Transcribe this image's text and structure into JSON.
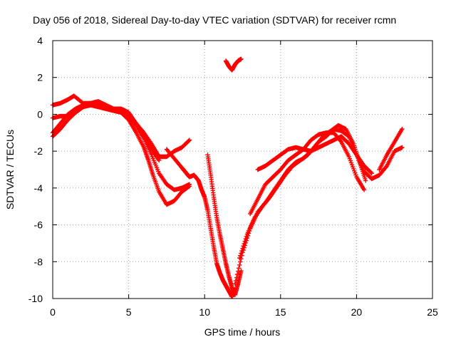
{
  "chart_data": {
    "type": "scatter",
    "title": "Day 056 of 2018, Sidereal Day-to-day VTEC variation (SDTVAR) for receiver rcmn",
    "xlabel": "GPS time / hours",
    "ylabel": "SDTVAR / TECUs",
    "xlim": [
      0,
      25
    ],
    "ylim": [
      -10,
      4
    ],
    "xticks": [
      "0",
      "5",
      "10",
      "15",
      "20",
      "25"
    ],
    "yticks": [
      "4",
      "2",
      "0",
      "-2",
      "-4",
      "-6",
      "-8",
      "-10"
    ],
    "grid": true,
    "marker": "plus",
    "color": "#ff0000",
    "series": [
      {
        "x": [
          0,
          0.5,
          1,
          1.5,
          2,
          2.5,
          3,
          3.5,
          4,
          4.5,
          5,
          5.5,
          6,
          6.3,
          6.6,
          7,
          7.5,
          8,
          8.5,
          9
        ],
        "y": [
          -1.2,
          -0.8,
          -0.3,
          0.1,
          0.4,
          0.5,
          0.4,
          0.3,
          0.2,
          0.1,
          -0.3,
          -1.0,
          -1.8,
          -2.5,
          -3.3,
          -4.2,
          -4.9,
          -4.7,
          -4.2,
          -3.9
        ]
      },
      {
        "x": [
          0,
          0.5,
          1,
          1.5,
          2,
          2.5,
          3,
          3.5,
          4,
          4.5,
          5,
          5.5,
          6,
          6.5,
          7,
          7.5,
          8,
          8.5,
          9
        ],
        "y": [
          -1.0,
          -0.5,
          0,
          0.3,
          0.5,
          0.6,
          0.5,
          0.3,
          0.2,
          0.2,
          -0.1,
          -0.6,
          -1.3,
          -2.2,
          -3.2,
          -3.8,
          -4.1,
          -4.0,
          -3.8
        ]
      },
      {
        "x": [
          0,
          0.5,
          1,
          1.4,
          2,
          2.5,
          3,
          3.5,
          4,
          4.5,
          5,
          5.5,
          6,
          6.5,
          7,
          7.5,
          8,
          8.5,
          9
        ],
        "y": [
          0.5,
          0.6,
          0.8,
          1.0,
          0.6,
          0.6,
          0.7,
          0.5,
          0.3,
          0.3,
          0.1,
          -0.5,
          -1.0,
          -1.6,
          -2.3,
          -2.3,
          -2.0,
          -1.8,
          -1.4
        ]
      },
      {
        "x": [
          0,
          0.5,
          1,
          1.5,
          2,
          2.5,
          3,
          3.5,
          4,
          4.5,
          5,
          5.5,
          6,
          6.5,
          7
        ],
        "y": [
          -0.2,
          -0.1,
          -0.1,
          0.1,
          0.4,
          0.6,
          0.6,
          0.4,
          0.2,
          0.1,
          -0.1,
          -0.5,
          -1.2,
          -1.9,
          -2.5
        ]
      },
      {
        "x": [
          7.5,
          8,
          8.5,
          8.8,
          9,
          9.3,
          9.6,
          9.8,
          10,
          10.2,
          10.4,
          10.6,
          10.8,
          11,
          11.2,
          11.4,
          11.6,
          11.8,
          12
        ],
        "y": [
          -1.9,
          -2.4,
          -2.9,
          -3.2,
          -3.4,
          -3.3,
          -3.6,
          -4.1,
          -4.5,
          -5.2,
          -6.2,
          -7.2,
          -8.1,
          -8.6,
          -9.0,
          -9.3,
          -9.6,
          -9.9,
          -9.5
        ]
      },
      {
        "x": [
          10.2,
          10.4,
          10.6,
          10.8,
          11,
          11.2,
          11.4,
          11.6,
          11.8,
          12,
          12.2,
          12.4
        ],
        "y": [
          -2.2,
          -3.3,
          -4.5,
          -5.6,
          -6.5,
          -7.3,
          -8.1,
          -8.8,
          -9.4,
          -9.8,
          -9.2,
          -8.5
        ]
      },
      {
        "x": [
          11.4,
          11.6,
          11.8,
          12,
          12.2,
          12.4
        ],
        "y": [
          2.9,
          2.6,
          2.4,
          2.7,
          2.9,
          3.0
        ]
      },
      {
        "x": [
          12,
          12.5,
          13,
          13.5,
          14,
          14.5,
          15,
          15.5,
          16,
          16.5,
          17,
          17.5,
          18,
          18.5,
          19,
          19.5,
          20,
          20.5,
          21,
          21.5,
          22,
          22.5,
          23
        ],
        "y": [
          -9.2,
          -7.5,
          -6.2,
          -5.3,
          -4.8,
          -4.2,
          -3.6,
          -3.0,
          -2.6,
          -2.4,
          -2.0,
          -1.5,
          -1.2,
          -0.8,
          -0.9,
          -1.2,
          -2.2,
          -3.1,
          -3.5,
          -3.3,
          -2.8,
          -2.0,
          -1.8
        ]
      },
      {
        "x": [
          12.3,
          12.8,
          13.3,
          13.8,
          14.3,
          14.8,
          15.3,
          15.8,
          16.3,
          16.8,
          17.3,
          17.8,
          18.3,
          18.8,
          19.3,
          19.8,
          20.2,
          20.6
        ],
        "y": [
          -7.8,
          -6.5,
          -5.6,
          -5.0,
          -4.5,
          -3.9,
          -3.3,
          -2.8,
          -2.5,
          -2.2,
          -1.7,
          -1.2,
          -0.9,
          -0.6,
          -0.8,
          -1.6,
          -2.6,
          -3.6
        ]
      },
      {
        "x": [
          13,
          13.5,
          14,
          14.5,
          15,
          15.5,
          16,
          16.5,
          17,
          17.5,
          18,
          18.5,
          19,
          19.5,
          20,
          20.5
        ],
        "y": [
          -5.4,
          -4.6,
          -3.8,
          -3.4,
          -3.0,
          -2.5,
          -2.2,
          -1.9,
          -1.4,
          -1.1,
          -1.0,
          -1.0,
          -1.5,
          -2.3,
          -3.4,
          -4.1
        ]
      },
      {
        "x": [
          13.5,
          14,
          14.5,
          15,
          15.5,
          16,
          16.5,
          17,
          17.5,
          18,
          18.5,
          19,
          19.5,
          20,
          20.5,
          21
        ],
        "y": [
          -3.0,
          -2.8,
          -2.5,
          -2.2,
          -1.9,
          -1.8,
          -1.9,
          -2.0,
          -1.8,
          -1.6,
          -1.4,
          -1.2,
          -1.6,
          -2.2,
          -2.8,
          -3.2
        ]
      },
      {
        "x": [
          21.5,
          22,
          22.5,
          23
        ],
        "y": [
          -3.0,
          -2.2,
          -1.5,
          -0.8
        ]
      }
    ]
  }
}
